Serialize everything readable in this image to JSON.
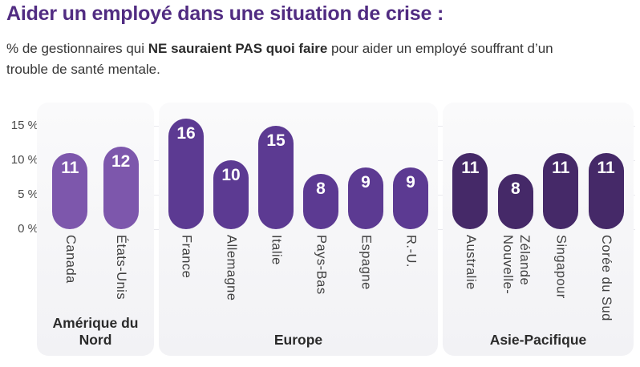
{
  "title": "Aider un employé dans une situation de crise :",
  "subtitle": {
    "prefix": "% de gestionnaires qui ",
    "bold": "NE sauraient PAS quoi faire",
    "suffix": " pour aider un employé souffrant d’un trouble de santé mentale."
  },
  "y_axis": {
    "ticks": [
      "15 %",
      "10 %",
      "5 %",
      "0 %"
    ]
  },
  "chart_data": {
    "type": "bar",
    "title": "Aider un employé dans une situation de crise : % de gestionnaires qui NE sauraient PAS quoi faire pour aider un employé souffrant d’un trouble de santé mentale",
    "unit": "%",
    "ylim": [
      0,
      18
    ],
    "yticks": [
      0,
      5,
      10,
      15
    ],
    "grid": "horizontal",
    "legend": "none",
    "bar_shape": "pill",
    "value_labels": "inside-top-white",
    "groups": [
      {
        "region": "Amérique du Nord",
        "color": "#7d57ac",
        "countries": [
          {
            "label_lines": [
              "Canada"
            ],
            "value": 11
          },
          {
            "label_lines": [
              "États-Unis"
            ],
            "value": 12
          }
        ]
      },
      {
        "region": "Europe",
        "color": "#5c3a92",
        "countries": [
          {
            "label_lines": [
              "France"
            ],
            "value": 16
          },
          {
            "label_lines": [
              "Allemagne"
            ],
            "value": 10
          },
          {
            "label_lines": [
              "Italie"
            ],
            "value": 15
          },
          {
            "label_lines": [
              "Pays-Bas"
            ],
            "value": 8
          },
          {
            "label_lines": [
              "Espagne"
            ],
            "value": 9
          },
          {
            "label_lines": [
              "R.-U."
            ],
            "value": 9
          }
        ]
      },
      {
        "region": "Asie-Pacifique",
        "color": "#452968",
        "countries": [
          {
            "label_lines": [
              "Australie"
            ],
            "value": 11
          },
          {
            "label_lines": [
              "Nouvelle-",
              "Zélande"
            ],
            "value": 8
          },
          {
            "label_lines": [
              "Singapour"
            ],
            "value": 11
          },
          {
            "label_lines": [
              "Corée du Sud"
            ],
            "value": 11
          }
        ]
      }
    ]
  }
}
